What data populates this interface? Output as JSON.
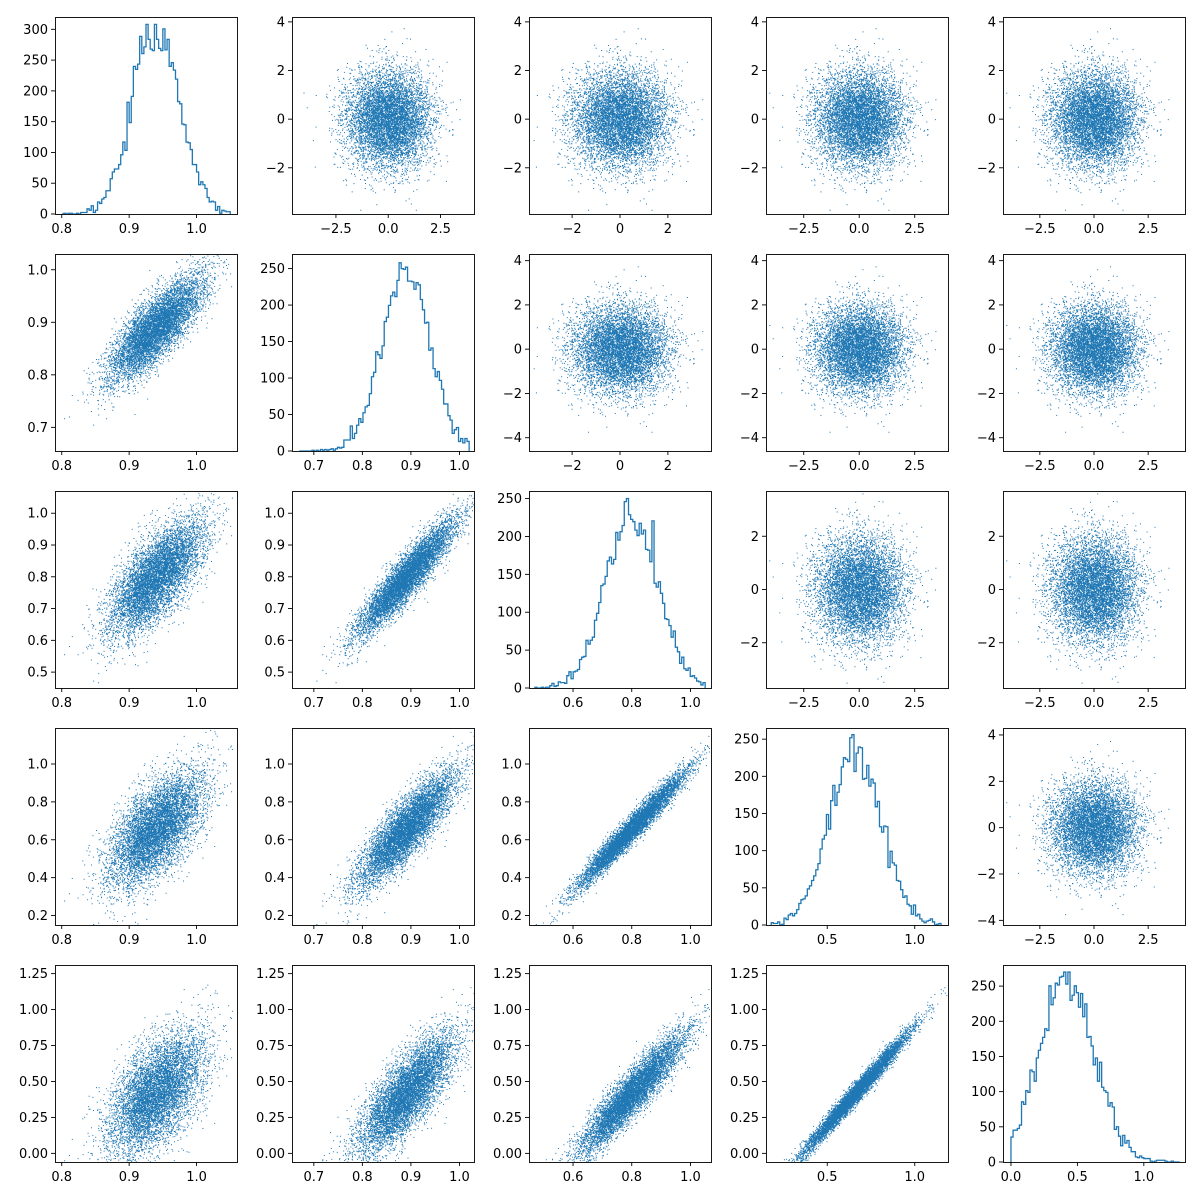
{
  "chart_data": {
    "type": "scatter-matrix",
    "grid": false,
    "n_vars": 5,
    "color": "#1f77b4",
    "points_per_panel_approx": 10000,
    "layout_note": "diagonal = step histograms; lower triangle = scatter of correlated variables; upper triangle = scatter of independent standard normals",
    "variables": [
      {
        "name": "",
        "mean": 0.94,
        "sd": 0.035,
        "range": [
          0.8,
          1.05
        ]
      },
      {
        "name": "",
        "mean": 0.89,
        "sd": 0.05,
        "range": [
          0.67,
          1.02
        ]
      },
      {
        "name": "",
        "mean": 0.8,
        "sd": 0.09,
        "range": [
          0.47,
          1.05
        ]
      },
      {
        "name": "",
        "mean": 0.66,
        "sd": 0.15,
        "range": [
          0.18,
          1.15
        ]
      },
      {
        "name": "",
        "mean": 0.42,
        "sd": 0.21,
        "range": [
          0.0,
          1.27
        ]
      }
    ],
    "correlation_lower": [
      [
        1.0,
        0.8,
        0.7,
        0.62,
        0.55
      ],
      [
        0.8,
        1.0,
        0.92,
        0.85,
        0.78
      ],
      [
        0.7,
        0.92,
        1.0,
        0.97,
        0.92
      ],
      [
        0.62,
        0.85,
        0.97,
        1.0,
        0.985
      ],
      [
        0.55,
        0.78,
        0.92,
        0.985,
        1.0
      ]
    ],
    "panels": [
      {
        "row": 0,
        "col": 0,
        "type": "histogram",
        "variable": 0,
        "xlim": [
          0.79,
          1.06
        ],
        "ylim": [
          0,
          320
        ],
        "xticks": [
          0.8,
          0.9,
          1.0
        ],
        "xtick_labels": [
          "0.8",
          "0.9",
          "1.0"
        ],
        "yticks": [
          0,
          50,
          100,
          150,
          200,
          250,
          300
        ],
        "ytick_labels": [
          "0",
          "50",
          "100",
          "150",
          "200",
          "250",
          "300"
        ],
        "peak_count": 308
      },
      {
        "row": 0,
        "col": 1,
        "type": "scatter",
        "variables": "independent normal",
        "xlim": [
          -4.6,
          4.1
        ],
        "ylim": [
          -3.9,
          4.2
        ],
        "xticks": [
          -2.5,
          0,
          2.5
        ],
        "xtick_labels": [
          "−2.5",
          "0.0",
          "2.5"
        ],
        "yticks": [
          -2,
          0,
          2,
          4
        ],
        "ytick_labels": [
          "−2",
          "0",
          "2",
          "4"
        ]
      },
      {
        "row": 0,
        "col": 2,
        "type": "scatter",
        "variables": "independent normal",
        "xlim": [
          -3.8,
          3.8
        ],
        "ylim": [
          -3.9,
          4.2
        ],
        "xticks": [
          -2,
          0,
          2
        ],
        "xtick_labels": [
          "−2",
          "0",
          "2"
        ],
        "yticks": [
          -2,
          0,
          2,
          4
        ],
        "ytick_labels": [
          "−2",
          "0",
          "2",
          "4"
        ]
      },
      {
        "row": 0,
        "col": 3,
        "type": "scatter",
        "variables": "independent normal",
        "xlim": [
          -4.2,
          4.0
        ],
        "ylim": [
          -3.9,
          4.2
        ],
        "xticks": [
          -2.5,
          0,
          2.5
        ],
        "xtick_labels": [
          "−2.5",
          "0.0",
          "2.5"
        ],
        "yticks": [
          -2,
          0,
          2,
          4
        ],
        "ytick_labels": [
          "−2",
          "0",
          "2",
          "4"
        ]
      },
      {
        "row": 0,
        "col": 4,
        "type": "scatter",
        "variables": "independent normal",
        "xlim": [
          -4.2,
          4.2
        ],
        "ylim": [
          -3.9,
          4.2
        ],
        "xticks": [
          -2.5,
          0,
          2.5
        ],
        "xtick_labels": [
          "−2.5",
          "0.0",
          "2.5"
        ],
        "yticks": [
          -2,
          0,
          2,
          4
        ],
        "ytick_labels": [
          "−2",
          "0",
          "2",
          "4"
        ]
      },
      {
        "row": 1,
        "col": 0,
        "type": "scatter",
        "x_var": 0,
        "y_var": 1,
        "xlim": [
          0.79,
          1.06
        ],
        "ylim": [
          0.655,
          1.03
        ],
        "xticks": [
          0.8,
          0.9,
          1.0
        ],
        "xtick_labels": [
          "0.8",
          "0.9",
          "1.0"
        ],
        "yticks": [
          0.7,
          0.8,
          0.9,
          1.0
        ],
        "ytick_labels": [
          "0.7",
          "0.8",
          "0.9",
          "1.0"
        ]
      },
      {
        "row": 1,
        "col": 1,
        "type": "histogram",
        "variable": 1,
        "xlim": [
          0.655,
          1.03
        ],
        "ylim": [
          0,
          270
        ],
        "xticks": [
          0.7,
          0.8,
          0.9,
          1.0
        ],
        "xtick_labels": [
          "0.7",
          "0.8",
          "0.9",
          "1.0"
        ],
        "yticks": [
          0,
          50,
          100,
          150,
          200,
          250
        ],
        "ytick_labels": [
          "0",
          "50",
          "100",
          "150",
          "200",
          "250"
        ],
        "peak_count": 258
      },
      {
        "row": 1,
        "col": 2,
        "type": "scatter",
        "variables": "independent normal",
        "xlim": [
          -3.8,
          3.8
        ],
        "ylim": [
          -4.6,
          4.3
        ],
        "xticks": [
          -2,
          0,
          2
        ],
        "xtick_labels": [
          "−2",
          "0",
          "2"
        ],
        "yticks": [
          -4,
          -2,
          0,
          2,
          4
        ],
        "ytick_labels": [
          "−4",
          "−2",
          "0",
          "2",
          "4"
        ]
      },
      {
        "row": 1,
        "col": 3,
        "type": "scatter",
        "variables": "independent normal",
        "xlim": [
          -4.2,
          4.0
        ],
        "ylim": [
          -4.6,
          4.3
        ],
        "xticks": [
          -2.5,
          0,
          2.5
        ],
        "xtick_labels": [
          "−2.5",
          "0.0",
          "2.5"
        ],
        "yticks": [
          -4,
          -2,
          0,
          2,
          4
        ],
        "ytick_labels": [
          "−4",
          "−2",
          "0",
          "2",
          "4"
        ]
      },
      {
        "row": 1,
        "col": 4,
        "type": "scatter",
        "variables": "independent normal",
        "xlim": [
          -4.2,
          4.2
        ],
        "ylim": [
          -4.6,
          4.3
        ],
        "xticks": [
          -2.5,
          0,
          2.5
        ],
        "xtick_labels": [
          "−2.5",
          "0.0",
          "2.5"
        ],
        "yticks": [
          -4,
          -2,
          0,
          2,
          4
        ],
        "ytick_labels": [
          "−4",
          "−2",
          "0",
          "2",
          "4"
        ]
      },
      {
        "row": 2,
        "col": 0,
        "type": "scatter",
        "x_var": 0,
        "y_var": 2,
        "xlim": [
          0.79,
          1.06
        ],
        "ylim": [
          0.45,
          1.07
        ],
        "xticks": [
          0.8,
          0.9,
          1.0
        ],
        "xtick_labels": [
          "0.8",
          "0.9",
          "1.0"
        ],
        "yticks": [
          0.5,
          0.6,
          0.7,
          0.8,
          0.9,
          1.0
        ],
        "ytick_labels": [
          "0.5",
          "0.6",
          "0.7",
          "0.8",
          "0.9",
          "1.0"
        ]
      },
      {
        "row": 2,
        "col": 1,
        "type": "scatter",
        "x_var": 1,
        "y_var": 2,
        "xlim": [
          0.655,
          1.03
        ],
        "ylim": [
          0.45,
          1.07
        ],
        "xticks": [
          0.7,
          0.8,
          0.9,
          1.0
        ],
        "xtick_labels": [
          "0.7",
          "0.8",
          "0.9",
          "1.0"
        ],
        "yticks": [
          0.5,
          0.6,
          0.7,
          0.8,
          0.9,
          1.0
        ],
        "ytick_labels": [
          "0.5",
          "0.6",
          "0.7",
          "0.8",
          "0.9",
          "1.0"
        ]
      },
      {
        "row": 2,
        "col": 2,
        "type": "histogram",
        "variable": 2,
        "xlim": [
          0.45,
          1.07
        ],
        "ylim": [
          0,
          260
        ],
        "xticks": [
          0.6,
          0.8,
          1.0
        ],
        "xtick_labels": [
          "0.6",
          "0.8",
          "1.0"
        ],
        "yticks": [
          0,
          50,
          100,
          150,
          200,
          250
        ],
        "ytick_labels": [
          "0",
          "50",
          "100",
          "150",
          "200",
          "250"
        ],
        "peak_count": 250
      },
      {
        "row": 2,
        "col": 3,
        "type": "scatter",
        "variables": "independent normal",
        "xlim": [
          -4.2,
          4.0
        ],
        "ylim": [
          -3.7,
          3.7
        ],
        "xticks": [
          -2.5,
          0,
          2.5
        ],
        "xtick_labels": [
          "−2.5",
          "0.0",
          "2.5"
        ],
        "yticks": [
          -2,
          0,
          2
        ],
        "ytick_labels": [
          "−2",
          "0",
          "2"
        ]
      },
      {
        "row": 2,
        "col": 4,
        "type": "scatter",
        "variables": "independent normal",
        "xlim": [
          -4.2,
          4.2
        ],
        "ylim": [
          -3.7,
          3.7
        ],
        "xticks": [
          -2.5,
          0,
          2.5
        ],
        "xtick_labels": [
          "−2.5",
          "0.0",
          "2.5"
        ],
        "yticks": [
          -2,
          0,
          2
        ],
        "ytick_labels": [
          "−2",
          "0",
          "2"
        ]
      },
      {
        "row": 3,
        "col": 0,
        "type": "scatter",
        "x_var": 0,
        "y_var": 3,
        "xlim": [
          0.79,
          1.06
        ],
        "ylim": [
          0.15,
          1.19
        ],
        "xticks": [
          0.8,
          0.9,
          1.0
        ],
        "xtick_labels": [
          "0.8",
          "0.9",
          "1.0"
        ],
        "yticks": [
          0.2,
          0.4,
          0.6,
          0.8,
          1.0
        ],
        "ytick_labels": [
          "0.2",
          "0.4",
          "0.6",
          "0.8",
          "1.0"
        ]
      },
      {
        "row": 3,
        "col": 1,
        "type": "scatter",
        "x_var": 1,
        "y_var": 3,
        "xlim": [
          0.655,
          1.03
        ],
        "ylim": [
          0.15,
          1.19
        ],
        "xticks": [
          0.7,
          0.8,
          0.9,
          1.0
        ],
        "xtick_labels": [
          "0.7",
          "0.8",
          "0.9",
          "1.0"
        ],
        "yticks": [
          0.2,
          0.4,
          0.6,
          0.8,
          1.0
        ],
        "ytick_labels": [
          "0.2",
          "0.4",
          "0.6",
          "0.8",
          "1.0"
        ]
      },
      {
        "row": 3,
        "col": 2,
        "type": "scatter",
        "x_var": 2,
        "y_var": 3,
        "xlim": [
          0.45,
          1.07
        ],
        "ylim": [
          0.15,
          1.19
        ],
        "xticks": [
          0.6,
          0.8,
          1.0
        ],
        "xtick_labels": [
          "0.6",
          "0.8",
          "1.0"
        ],
        "yticks": [
          0.2,
          0.4,
          0.6,
          0.8,
          1.0
        ],
        "ytick_labels": [
          "0.2",
          "0.4",
          "0.6",
          "0.8",
          "1.0"
        ]
      },
      {
        "row": 3,
        "col": 3,
        "type": "histogram",
        "variable": 3,
        "xlim": [
          0.15,
          1.19
        ],
        "ylim": [
          0,
          265
        ],
        "xticks": [
          0.5,
          1.0
        ],
        "xtick_labels": [
          "0.5",
          "1.0"
        ],
        "yticks": [
          0,
          50,
          100,
          150,
          200,
          250
        ],
        "ytick_labels": [
          "0",
          "50",
          "100",
          "150",
          "200",
          "250"
        ],
        "peak_count": 256
      },
      {
        "row": 3,
        "col": 4,
        "type": "scatter",
        "variables": "independent normal",
        "xlim": [
          -4.2,
          4.2
        ],
        "ylim": [
          -4.2,
          4.3
        ],
        "xticks": [
          -2.5,
          0,
          2.5
        ],
        "xtick_labels": [
          "−2.5",
          "0.0",
          "2.5"
        ],
        "yticks": [
          -4,
          -2,
          0,
          2,
          4
        ],
        "ytick_labels": [
          "−4",
          "−2",
          "0",
          "2",
          "4"
        ]
      },
      {
        "row": 4,
        "col": 0,
        "type": "scatter",
        "x_var": 0,
        "y_var": 4,
        "xlim": [
          0.79,
          1.06
        ],
        "ylim": [
          -0.06,
          1.31
        ],
        "xticks": [
          0.8,
          0.9,
          1.0
        ],
        "xtick_labels": [
          "0.8",
          "0.9",
          "1.0"
        ],
        "yticks": [
          0,
          0.25,
          0.5,
          0.75,
          1.0,
          1.25
        ],
        "ytick_labels": [
          "0.00",
          "0.25",
          "0.50",
          "0.75",
          "1.00",
          "1.25"
        ]
      },
      {
        "row": 4,
        "col": 1,
        "type": "scatter",
        "x_var": 1,
        "y_var": 4,
        "xlim": [
          0.655,
          1.03
        ],
        "ylim": [
          -0.06,
          1.31
        ],
        "xticks": [
          0.7,
          0.8,
          0.9,
          1.0
        ],
        "xtick_labels": [
          "0.7",
          "0.8",
          "0.9",
          "1.0"
        ],
        "yticks": [
          0,
          0.25,
          0.5,
          0.75,
          1.0,
          1.25
        ],
        "ytick_labels": [
          "0.00",
          "0.25",
          "0.50",
          "0.75",
          "1.00",
          "1.25"
        ]
      },
      {
        "row": 4,
        "col": 2,
        "type": "scatter",
        "x_var": 2,
        "y_var": 4,
        "xlim": [
          0.45,
          1.07
        ],
        "ylim": [
          -0.06,
          1.31
        ],
        "xticks": [
          0.6,
          0.8,
          1.0
        ],
        "xtick_labels": [
          "0.6",
          "0.8",
          "1.0"
        ],
        "yticks": [
          0,
          0.25,
          0.5,
          0.75,
          1.0,
          1.25
        ],
        "ytick_labels": [
          "0.00",
          "0.25",
          "0.50",
          "0.75",
          "1.00",
          "1.25"
        ]
      },
      {
        "row": 4,
        "col": 3,
        "type": "scatter",
        "x_var": 3,
        "y_var": 4,
        "xlim": [
          0.15,
          1.19
        ],
        "ylim": [
          -0.06,
          1.31
        ],
        "xticks": [
          0.5,
          1.0
        ],
        "xtick_labels": [
          "0.5",
          "1.0"
        ],
        "yticks": [
          0,
          0.25,
          0.5,
          0.75,
          1.0,
          1.25
        ],
        "ytick_labels": [
          "0.00",
          "0.25",
          "0.50",
          "0.75",
          "1.00",
          "1.25"
        ]
      },
      {
        "row": 4,
        "col": 4,
        "type": "histogram",
        "variable": 4,
        "xlim": [
          -0.06,
          1.31
        ],
        "ylim": [
          0,
          280
        ],
        "xticks": [
          0,
          0.5,
          1.0
        ],
        "xtick_labels": [
          "0.0",
          "0.5",
          "1.0"
        ],
        "yticks": [
          0,
          50,
          100,
          150,
          200,
          250
        ],
        "ytick_labels": [
          "0",
          "50",
          "100",
          "150",
          "200",
          "250"
        ],
        "peak_count": 270
      }
    ]
  }
}
